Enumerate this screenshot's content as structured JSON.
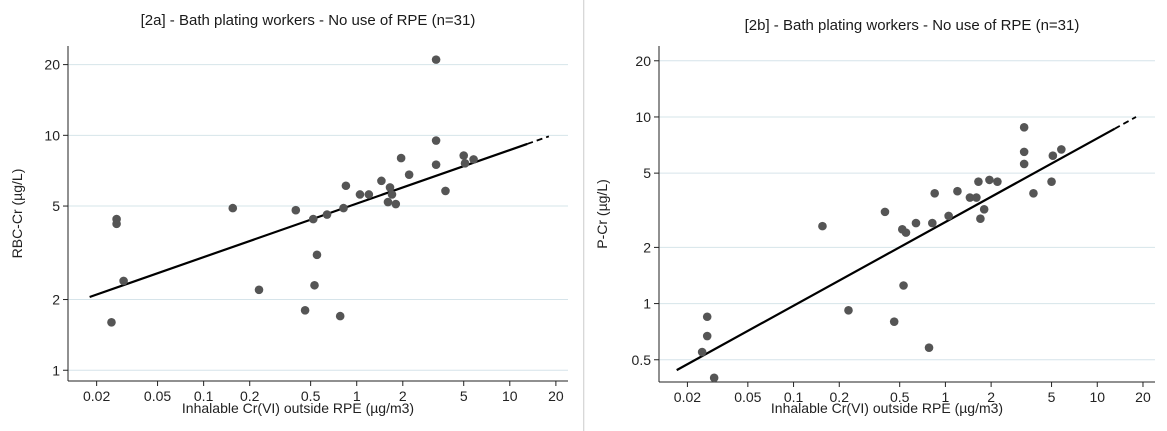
{
  "chart_data": [
    {
      "type": "scatter",
      "title": "[2a] - Bath plating workers - No use of RPE (n=31)",
      "xlabel": "Inhalable Cr(VI) outside RPE (µg/m3)",
      "ylabel": "RBC-Cr (µg/L)",
      "x_scale": "log",
      "y_scale": "log",
      "xlim": [
        0.013,
        24
      ],
      "ylim": [
        0.9,
        24
      ],
      "xticks": [
        0.02,
        0.05,
        0.1,
        0.2,
        0.5,
        1,
        2,
        5,
        10,
        20
      ],
      "xtick_labels": [
        "0.02",
        "0.05",
        "0.1",
        "0.2",
        "0.5",
        "1",
        "2",
        "5",
        "10",
        "20"
      ],
      "yticks": [
        1,
        2,
        5,
        10,
        20
      ],
      "ytick_labels": [
        "1",
        "2",
        "5",
        "10",
        "20"
      ],
      "grid": true,
      "points": [
        [
          0.025,
          1.6
        ],
        [
          0.027,
          4.2
        ],
        [
          0.027,
          4.4
        ],
        [
          0.03,
          2.4
        ],
        [
          0.155,
          4.9
        ],
        [
          0.23,
          2.2
        ],
        [
          0.4,
          4.8
        ],
        [
          0.46,
          1.8
        ],
        [
          0.52,
          4.4
        ],
        [
          0.53,
          2.3
        ],
        [
          0.55,
          3.1
        ],
        [
          0.64,
          4.6
        ],
        [
          0.78,
          1.7
        ],
        [
          0.82,
          4.9
        ],
        [
          0.85,
          6.1
        ],
        [
          1.05,
          5.6
        ],
        [
          1.2,
          5.6
        ],
        [
          1.45,
          6.4
        ],
        [
          1.6,
          5.2
        ],
        [
          1.65,
          6.0
        ],
        [
          1.7,
          5.6
        ],
        [
          1.8,
          5.1
        ],
        [
          1.95,
          8.0
        ],
        [
          2.2,
          6.8
        ],
        [
          3.3,
          21.0
        ],
        [
          3.3,
          9.5
        ],
        [
          3.3,
          7.5
        ],
        [
          3.8,
          5.8
        ],
        [
          5.0,
          8.2
        ],
        [
          5.1,
          7.6
        ],
        [
          5.8,
          7.9
        ]
      ],
      "fit_line": [
        [
          0.018,
          2.05
        ],
        [
          18,
          9.9
        ]
      ],
      "fit_solid_until": 13
    },
    {
      "type": "scatter",
      "title": "[2b] - Bath plating workers - No use of RPE (n=31)",
      "xlabel": "Inhalable Cr(VI) outside RPE (µg/m3)",
      "ylabel": "P-Cr (µg/L)",
      "x_scale": "log",
      "y_scale": "log",
      "xlim": [
        0.013,
        24
      ],
      "ylim": [
        0.38,
        24
      ],
      "xticks": [
        0.02,
        0.05,
        0.1,
        0.2,
        0.5,
        1,
        2,
        5,
        10,
        20
      ],
      "xtick_labels": [
        "0.02",
        "0.05",
        "0.1",
        "0.2",
        "0.5",
        "1",
        "2",
        "5",
        "10",
        "20"
      ],
      "yticks": [
        0.5,
        1,
        2,
        5,
        10,
        20
      ],
      "ytick_labels": [
        "0.5",
        "1",
        "2",
        "5",
        "10",
        "20"
      ],
      "grid": true,
      "points": [
        [
          0.025,
          0.55
        ],
        [
          0.027,
          0.85
        ],
        [
          0.027,
          0.67
        ],
        [
          0.03,
          0.4
        ],
        [
          0.155,
          2.6
        ],
        [
          0.23,
          0.92
        ],
        [
          0.4,
          3.1
        ],
        [
          0.46,
          0.8
        ],
        [
          0.52,
          2.5
        ],
        [
          0.53,
          1.25
        ],
        [
          0.55,
          2.4
        ],
        [
          0.64,
          2.7
        ],
        [
          0.78,
          0.58
        ],
        [
          0.82,
          2.7
        ],
        [
          0.85,
          3.9
        ],
        [
          1.05,
          2.95
        ],
        [
          1.2,
          4.0
        ],
        [
          1.45,
          3.7
        ],
        [
          1.6,
          3.7
        ],
        [
          1.65,
          4.5
        ],
        [
          1.7,
          2.85
        ],
        [
          1.8,
          3.2
        ],
        [
          1.95,
          4.6
        ],
        [
          2.2,
          4.5
        ],
        [
          3.3,
          8.8
        ],
        [
          3.3,
          6.5
        ],
        [
          3.3,
          5.6
        ],
        [
          3.8,
          3.9
        ],
        [
          5.0,
          4.5
        ],
        [
          5.1,
          6.2
        ],
        [
          5.8,
          6.7
        ]
      ],
      "fit_line": [
        [
          0.017,
          0.44
        ],
        [
          18,
          10.0
        ]
      ],
      "fit_solid_until": 13
    }
  ],
  "colors": {
    "point": "#555555",
    "line": "#000000",
    "grid": "#d6e4ea",
    "axis": "#222222"
  }
}
